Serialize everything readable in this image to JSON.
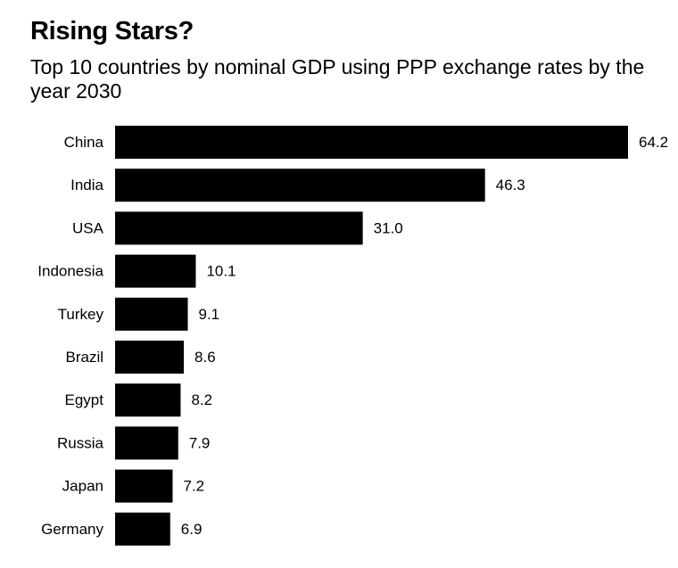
{
  "title": "Rising Stars?",
  "subtitle": "Top 10 countries by nominal GDP using PPP exchange rates by the year 2030",
  "colors": {
    "bar": "#000000",
    "background": "#ffffff",
    "text": "#000000"
  },
  "chart_data": {
    "type": "bar",
    "orientation": "horizontal",
    "categories": [
      "China",
      "India",
      "USA",
      "Indonesia",
      "Turkey",
      "Brazil",
      "Egypt",
      "Russia",
      "Japan",
      "Germany"
    ],
    "values": [
      64.2,
      46.3,
      31.0,
      10.1,
      9.1,
      8.6,
      8.2,
      7.9,
      7.2,
      6.9
    ],
    "value_labels": [
      "64.2",
      "46.3",
      "31.0",
      "10.1",
      "9.1",
      "8.6",
      "8.2",
      "7.9",
      "7.2",
      "6.9"
    ],
    "xlim": [
      0,
      64.2
    ],
    "grid": false,
    "legend": "none"
  }
}
